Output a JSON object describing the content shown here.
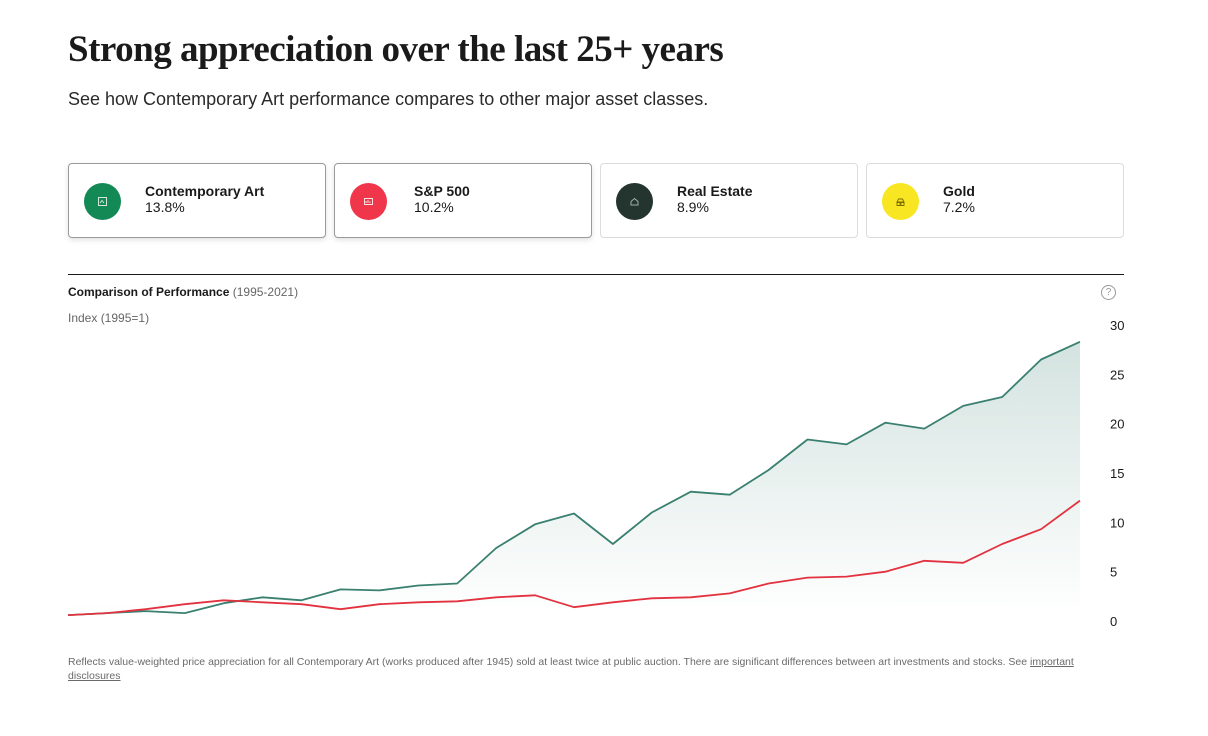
{
  "page": {
    "title": "Strong appreciation over the last 25+ years",
    "subtitle": "See how Contemporary Art performance compares to other major asset classes."
  },
  "cards": [
    {
      "name": "Contemporary Art",
      "pct": "13.8%",
      "color": "#138a55",
      "icon": "art-icon"
    },
    {
      "name": "S&P 500",
      "pct": "10.2%",
      "color": "#f0364a",
      "icon": "stocks-icon"
    },
    {
      "name": "Real Estate",
      "pct": "8.9%",
      "color": "#243530",
      "icon": "house-icon"
    },
    {
      "name": "Gold",
      "pct": "7.2%",
      "color": "#f8e622",
      "icon": "gold-icon"
    }
  ],
  "chart_header": {
    "title": "Comparison of Performance",
    "period": "(1995-2021)",
    "index_label": "Index (1995=1)"
  },
  "disclaimer": {
    "text": "Reflects value-weighted price appreciation for all Contemporary Art (works produced after 1945) sold at least twice at public auction. There are significant differences between art investments and stocks. See",
    "link": "important disclosures"
  },
  "chart_data": {
    "type": "area",
    "title": "Comparison of Performance (1995-2021)",
    "ylabel": "Index (1995=1)",
    "ylim": [
      0,
      30
    ],
    "yticks": [
      0,
      5,
      10,
      15,
      20,
      25,
      30
    ],
    "x": [
      0,
      0.5,
      1,
      1.5,
      2,
      2.5,
      3,
      3.5,
      4,
      4.5,
      5,
      5.5,
      6,
      6.5,
      7,
      7.5,
      8,
      8.5,
      9,
      9.5,
      10,
      10.5,
      11,
      11.5,
      12,
      12.5,
      13
    ],
    "series": [
      {
        "name": "Contemporary Art",
        "color": "#3a8070",
        "fill": true,
        "values": [
          0.6,
          0.8,
          1.0,
          0.8,
          1.8,
          2.4,
          2.1,
          3.2,
          3.1,
          3.6,
          3.8,
          7.4,
          9.8,
          10.9,
          7.8,
          11.0,
          13.1,
          12.8,
          15.3,
          18.4,
          17.9,
          20.1,
          19.5,
          21.8,
          22.7,
          26.5,
          28.3
        ]
      },
      {
        "name": "S&P 500",
        "color": "#e2323f",
        "fill": false,
        "values": [
          0.6,
          0.8,
          1.2,
          1.7,
          2.1,
          1.9,
          1.7,
          1.2,
          1.7,
          1.9,
          2.0,
          2.4,
          2.6,
          1.4,
          1.9,
          2.3,
          2.4,
          2.8,
          3.8,
          4.4,
          4.5,
          5.0,
          6.1,
          5.9,
          7.8,
          9.3,
          12.2
        ]
      }
    ]
  }
}
